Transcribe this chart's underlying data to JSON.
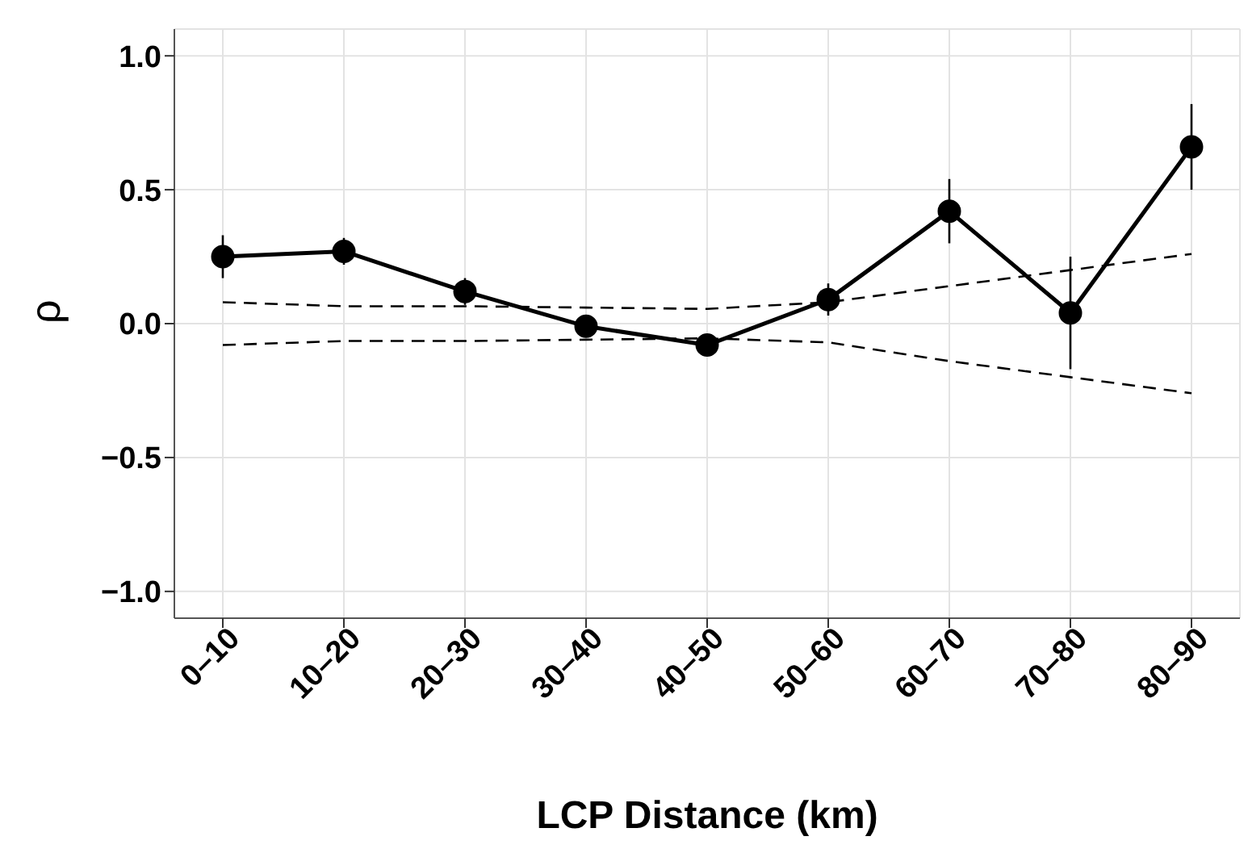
{
  "chart_data": {
    "type": "line",
    "xlabel": "LCP Distance (km)",
    "ylabel": "ρ",
    "categories": [
      "0–10",
      "10–20",
      "20–30",
      "30–40",
      "40–50",
      "50–60",
      "60–70",
      "70–80",
      "80–90"
    ],
    "series": [
      {
        "color": "#000000",
        "marker": "circle",
        "line_style": "solid",
        "values": [
          0.25,
          0.27,
          0.12,
          -0.01,
          -0.08,
          0.09,
          0.42,
          0.04,
          0.66
        ],
        "errors": [
          0.08,
          0.05,
          0.05,
          0.04,
          0.04,
          0.06,
          0.12,
          0.21,
          0.16
        ]
      },
      {
        "color": "#000000",
        "marker": "none",
        "line_style": "dashed",
        "values": [
          0.08,
          0.065,
          0.065,
          0.06,
          0.055,
          0.08,
          0.14,
          0.2,
          0.26
        ]
      },
      {
        "color": "#000000",
        "marker": "none",
        "line_style": "dashed",
        "values": [
          -0.08,
          -0.065,
          -0.065,
          -0.06,
          -0.055,
          -0.07,
          -0.14,
          -0.2,
          -0.26
        ]
      }
    ],
    "ylim": [
      -1.1,
      1.1
    ],
    "yticks": [
      {
        "value": -1,
        "label": "−1.0"
      },
      {
        "value": -0.5,
        "label": "−0.5"
      },
      {
        "value": 0,
        "label": "0.0"
      },
      {
        "value": 0.5,
        "label": "0.5"
      },
      {
        "value": 1,
        "label": "1.0"
      }
    ],
    "grid": true,
    "legend": false
  }
}
